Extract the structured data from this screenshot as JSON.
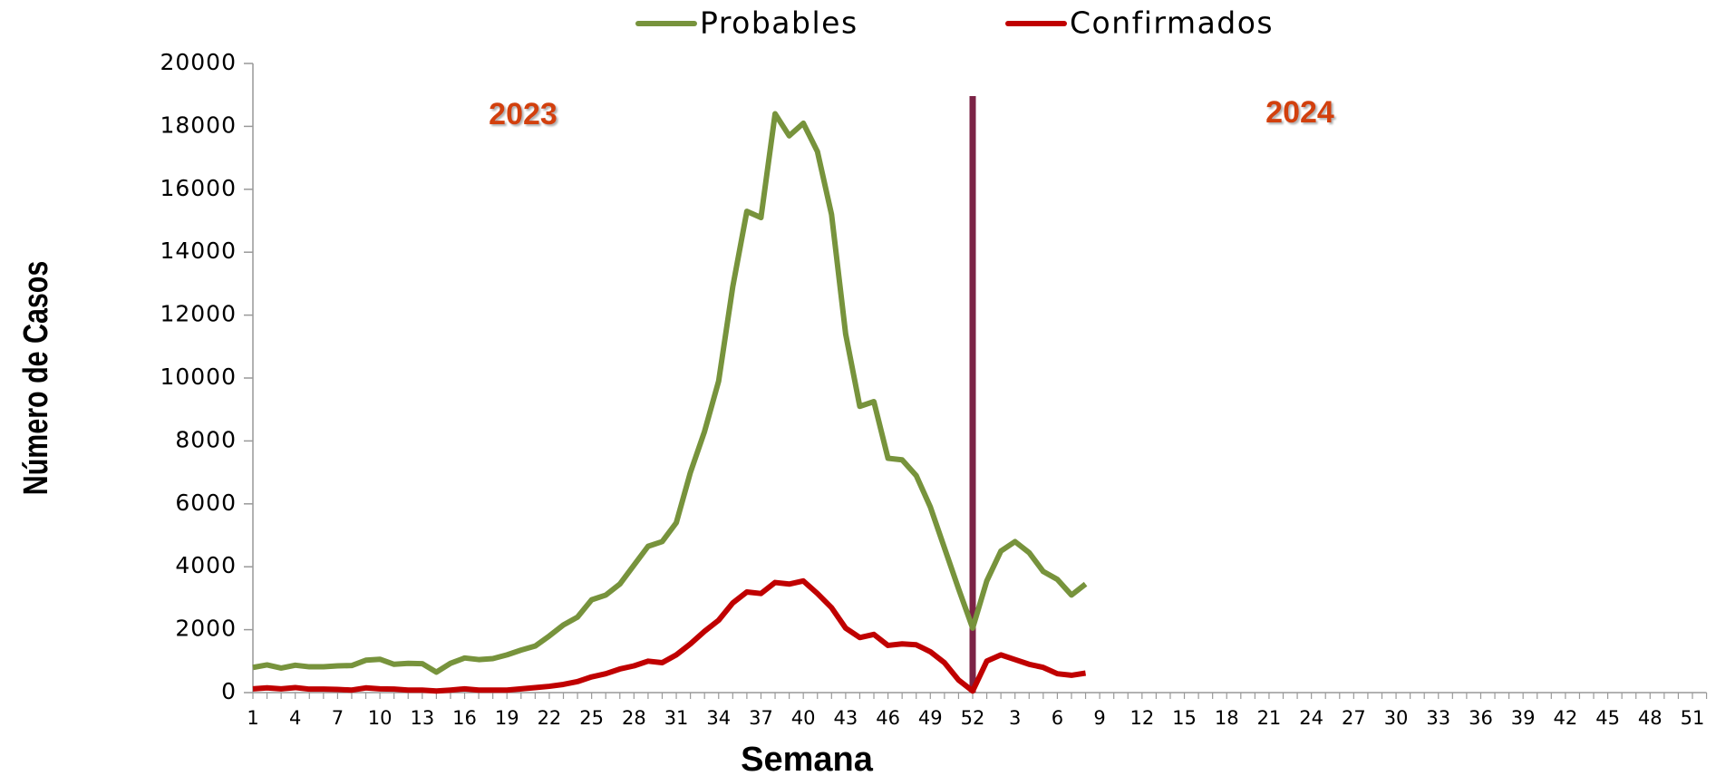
{
  "chart_data": {
    "type": "line",
    "y_label": "Número de Casos",
    "x_label": "Semana",
    "annotations": [
      {
        "text": "2023"
      },
      {
        "text": "2024"
      }
    ],
    "categories": [
      "1",
      null,
      null,
      "4",
      null,
      null,
      "7",
      null,
      null,
      "10",
      null,
      null,
      "13",
      null,
      null,
      "16",
      null,
      null,
      "19",
      null,
      null,
      "22",
      null,
      null,
      "25",
      null,
      null,
      "28",
      null,
      null,
      "31",
      null,
      null,
      "34",
      null,
      null,
      "37",
      null,
      null,
      "40",
      null,
      null,
      "43",
      null,
      null,
      "46",
      null,
      null,
      "49",
      null,
      null,
      "52",
      null,
      null,
      "3",
      null,
      null,
      "6",
      null,
      null,
      "9",
      null,
      null,
      "12",
      null,
      null,
      "15",
      null,
      null,
      "18",
      null,
      null,
      "21",
      null,
      null,
      "24",
      null,
      null,
      "27",
      null,
      null,
      "30",
      null,
      null,
      "33",
      null,
      null,
      "36",
      null,
      null,
      "39",
      null,
      null,
      "42",
      null,
      null,
      "45",
      null,
      null,
      "48",
      null,
      null,
      "51",
      null
    ],
    "series": [
      {
        "name": "Probables",
        "color": "#77933c",
        "values": [
          800,
          880,
          780,
          870,
          820,
          820,
          850,
          860,
          1030,
          1060,
          900,
          930,
          920,
          650,
          930,
          1100,
          1050,
          1080,
          1200,
          1350,
          1480,
          1800,
          2150,
          2400,
          2950,
          3100,
          3450,
          4050,
          4650,
          4800,
          5400,
          7000,
          8300,
          9900,
          12900,
          15300,
          15100,
          18400,
          17700,
          18100,
          17200,
          15200,
          11400,
          9100,
          9250,
          7450,
          7400,
          6900,
          5900,
          4600,
          3300,
          2050,
          3550,
          4500,
          4800,
          4450,
          3850,
          3600,
          3100,
          3450,
          null,
          null,
          null,
          null,
          null,
          null,
          null,
          null,
          null,
          null,
          null,
          null,
          null,
          null,
          null,
          null,
          null,
          null,
          null,
          null,
          null,
          null,
          null,
          null,
          null,
          null,
          null,
          null,
          null,
          null,
          null,
          null,
          null,
          null,
          null,
          null,
          null,
          null,
          null,
          null,
          null,
          null,
          null,
          null
        ]
      },
      {
        "name": "Confirmados",
        "color": "#c00000",
        "values": [
          120,
          150,
          120,
          160,
          110,
          110,
          100,
          80,
          150,
          120,
          110,
          80,
          80,
          50,
          80,
          120,
          80,
          80,
          80,
          120,
          160,
          200,
          260,
          350,
          500,
          600,
          750,
          850,
          1000,
          950,
          1200,
          1550,
          1950,
          2300,
          2850,
          3200,
          3150,
          3500,
          3450,
          3550,
          3150,
          2700,
          2050,
          1750,
          1850,
          1500,
          1550,
          1520,
          1300,
          950,
          400,
          50,
          1000,
          1200,
          1050,
          900,
          800,
          600,
          550,
          620,
          null,
          null,
          null,
          null,
          null,
          null,
          null,
          null,
          null,
          null,
          null,
          null,
          null,
          null,
          null,
          null,
          null,
          null,
          null,
          null,
          null,
          null,
          null,
          null,
          null,
          null,
          null,
          null,
          null,
          null,
          null,
          null,
          null,
          null,
          null,
          null,
          null,
          null,
          null,
          null,
          null,
          null,
          null,
          null
        ]
      }
    ],
    "ylim": [
      0,
      20000
    ],
    "yticks": [
      0,
      2000,
      4000,
      6000,
      8000,
      10000,
      12000,
      14000,
      16000,
      18000,
      20000
    ]
  }
}
